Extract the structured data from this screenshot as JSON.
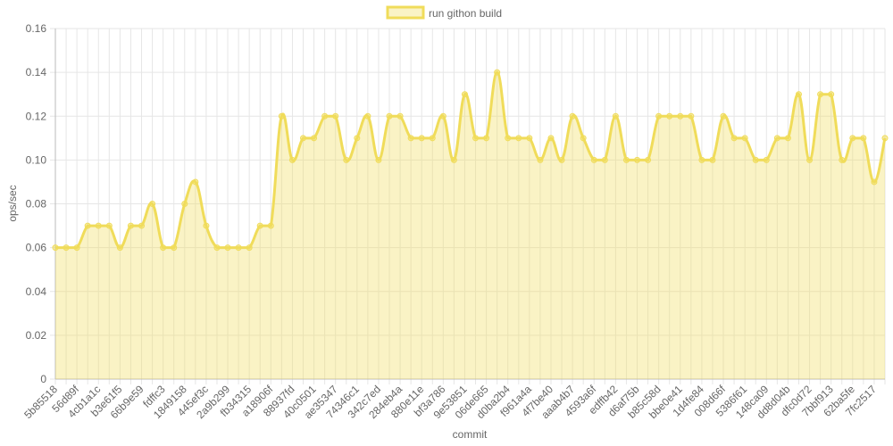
{
  "chart_data": {
    "type": "line",
    "xlabel": "commit",
    "ylabel": "ops/sec",
    "ylim": [
      0,
      0.16
    ],
    "yticks": [
      0,
      0.02,
      0.04,
      0.06,
      0.08,
      {
        "value": 0.1,
        "label": "0.10"
      },
      0.12,
      0.14,
      0.16
    ],
    "grid": true,
    "legend": "top",
    "categories": [
      "5b85518",
      null,
      "56d89f",
      null,
      "4cb1a1c",
      null,
      "b3e61f5",
      null,
      "66b9e59",
      null,
      "fdffc3",
      null,
      "1849158",
      null,
      "445ef3c",
      null,
      "2a9b299",
      null,
      "fb34315",
      null,
      "a18906f",
      null,
      "88937fd",
      null,
      "40c0501",
      null,
      "ae35347",
      null,
      "74346c1",
      null,
      "342c7ed",
      null,
      "284eb4a",
      null,
      "880e11e",
      null,
      "bf3a786",
      null,
      "9e53851",
      null,
      "06de665",
      null,
      "d0ba2b4",
      null,
      "f961a4a",
      null,
      "4f7be40",
      null,
      "aaab4b7",
      null,
      "4593a6f",
      null,
      "edffb42",
      null,
      "d6af75b",
      null,
      "b85c58d",
      null,
      "bbe0e41",
      null,
      "1d4fe84",
      null,
      "008d66f",
      null,
      "5386f61",
      null,
      "148ca09",
      null,
      "dd8d04b",
      null,
      "dfc0d72",
      null,
      "7bbf913",
      null,
      "62ba5fe",
      null,
      "7fc2517",
      null
    ],
    "series": [
      {
        "name": "run githon build",
        "color": "#f0dc5a",
        "values": [
          0.06,
          0.06,
          0.06,
          0.07,
          0.07,
          0.07,
          0.06,
          0.07,
          0.07,
          0.08,
          0.06,
          0.06,
          0.08,
          0.09,
          0.07,
          0.06,
          0.06,
          0.06,
          0.06,
          0.07,
          0.07,
          0.12,
          0.1,
          0.11,
          0.11,
          0.12,
          0.12,
          0.1,
          0.11,
          0.12,
          0.1,
          0.12,
          0.12,
          0.11,
          0.11,
          0.11,
          0.12,
          0.1,
          0.13,
          0.11,
          0.11,
          0.14,
          0.11,
          0.11,
          0.11,
          0.1,
          0.11,
          0.1,
          0.12,
          0.11,
          0.1,
          0.1,
          0.12,
          0.1,
          0.1,
          0.1,
          0.12,
          0.12,
          0.12,
          0.12,
          0.1,
          0.1,
          0.12,
          0.11,
          0.11,
          0.1,
          0.1,
          0.11,
          0.11,
          0.13,
          0.1,
          0.13,
          0.13,
          0.1,
          0.11,
          0.11,
          0.09,
          0.11
        ]
      }
    ]
  }
}
